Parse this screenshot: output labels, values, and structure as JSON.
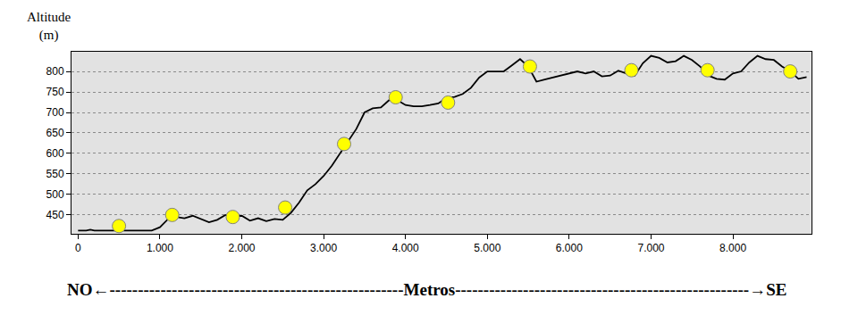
{
  "chart_data": {
    "type": "line",
    "y_label": "Altitude\n(m)",
    "x_label": "NO←----------------------------------------------------Metros----------------------------------------------------→SE",
    "xlim": [
      -80,
      8960
    ],
    "xticks": [
      0,
      {
        "value": 1000,
        "label": "1.000"
      },
      {
        "value": 2000,
        "label": "2.000"
      },
      {
        "value": 3000,
        "label": "3.000"
      },
      {
        "value": 4000,
        "label": "4.000"
      },
      {
        "value": 5000,
        "label": "5.000"
      },
      {
        "value": 6000,
        "label": "6.000"
      },
      {
        "value": 7000,
        "label": "7.000"
      },
      {
        "value": 8000,
        "label": "8.000"
      }
    ],
    "ylim": [
      404,
      848
    ],
    "yticks": [
      450,
      500,
      550,
      600,
      650,
      700,
      750,
      800
    ],
    "grid": true,
    "series": [
      {
        "type": "line",
        "color": "#000000",
        "line_style": "solid",
        "x": [
          0,
          100,
          150,
          200,
          500,
          900,
          1000,
          1100,
          1200,
          1300,
          1400,
          1500,
          1600,
          1700,
          1800,
          1900,
          2000,
          2100,
          2200,
          2300,
          2400,
          2500,
          2600,
          2700,
          2800,
          2900,
          3000,
          3100,
          3200,
          3300,
          3400,
          3500,
          3600,
          3700,
          3800,
          3900,
          4000,
          4100,
          4200,
          4300,
          4400,
          4500,
          4600,
          4700,
          4800,
          4900,
          5000,
          5100,
          5200,
          5300,
          5400,
          5500,
          5600,
          5700,
          5800,
          5900,
          6000,
          6100,
          6200,
          6300,
          6400,
          6500,
          6600,
          6700,
          6800,
          6900,
          7000,
          7100,
          7200,
          7300,
          7400,
          7500,
          7600,
          7700,
          7800,
          7900,
          8000,
          8100,
          8200,
          8300,
          8400,
          8500,
          8600,
          8700,
          8800,
          8900
        ],
        "values": [
          412,
          412,
          414,
          412,
          412,
          412,
          420,
          440,
          445,
          442,
          448,
          440,
          432,
          438,
          450,
          446,
          448,
          436,
          442,
          435,
          440,
          438,
          455,
          480,
          510,
          525,
          545,
          570,
          600,
          630,
          660,
          700,
          710,
          712,
          730,
          730,
          718,
          715,
          715,
          718,
          722,
          735,
          738,
          745,
          760,
          785,
          800,
          800,
          800,
          815,
          830,
          812,
          775,
          780,
          785,
          790,
          795,
          800,
          795,
          800,
          788,
          790,
          802,
          795,
          790,
          820,
          838,
          833,
          822,
          825,
          838,
          828,
          812,
          790,
          782,
          780,
          795,
          800,
          822,
          838,
          830,
          828,
          812,
          800,
          782,
          786
        ]
      },
      {
        "type": "scatter",
        "color": "#ffff00",
        "marker": "circle",
        "x": [
          500,
          1150,
          1890,
          2530,
          3250,
          3880,
          4520,
          5520,
          6760,
          7690,
          8700
        ],
        "values": [
          423,
          450,
          445,
          468,
          623,
          737,
          724,
          812,
          803,
          803,
          800
        ]
      }
    ]
  }
}
